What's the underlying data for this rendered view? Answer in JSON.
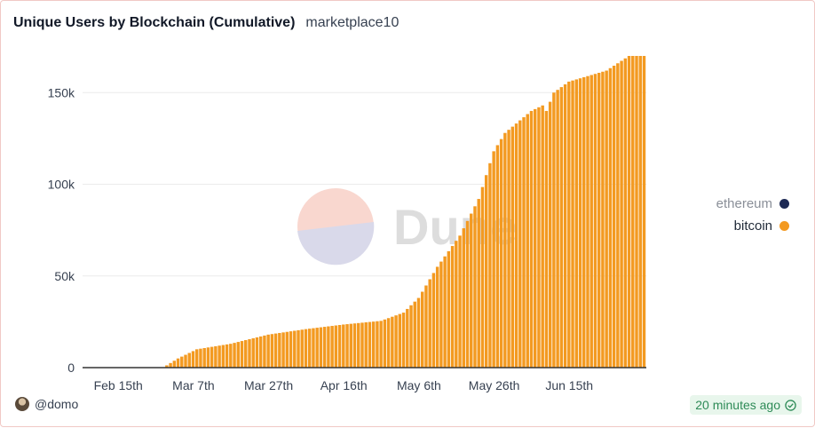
{
  "header": {
    "title": "Unique Users by Blockchain (Cumulative)",
    "subtitle": "marketplace10"
  },
  "watermark": {
    "text": "Dune"
  },
  "legend": {
    "items": [
      {
        "label": "ethereum",
        "color": "#1e2a55"
      },
      {
        "label": "bitcoin",
        "color": "#f39a21"
      }
    ]
  },
  "footer": {
    "user": "@domo",
    "freshness": "20 minutes ago"
  },
  "colors": {
    "bar": "#f39a21",
    "grid": "#ececec",
    "axis": "#333333"
  },
  "chart_data": {
    "type": "bar",
    "title": "Unique Users by Blockchain (Cumulative)",
    "subtitle": "marketplace10",
    "x_ticks": [
      "Feb 15th",
      "Mar 7th",
      "Mar 27th",
      "Apr 16th",
      "May 6th",
      "May 26th",
      "Jun 15th"
    ],
    "y_ticks": [
      0,
      50000,
      100000,
      150000
    ],
    "y_tick_labels": [
      "0",
      "50k",
      "100k",
      "150k"
    ],
    "ylim": [
      0,
      170000
    ],
    "x_range": [
      "2023-02-06",
      "2023-07-05"
    ],
    "legend_position": "right",
    "grid": true,
    "series": [
      {
        "name": "bitcoin",
        "color": "#f39a21",
        "anchors": [
          [
            "2023-02-06",
            0
          ],
          [
            "2023-02-27",
            0
          ],
          [
            "2023-03-03",
            5000
          ],
          [
            "2023-03-08",
            10000
          ],
          [
            "2023-03-17",
            13000
          ],
          [
            "2023-03-27",
            18000
          ],
          [
            "2023-04-06",
            21000
          ],
          [
            "2023-04-16",
            23500
          ],
          [
            "2023-04-26",
            25500
          ],
          [
            "2023-05-02",
            30000
          ],
          [
            "2023-05-06",
            38000
          ],
          [
            "2023-05-11",
            55000
          ],
          [
            "2023-05-17",
            72000
          ],
          [
            "2023-05-22",
            92000
          ],
          [
            "2023-05-26",
            118000
          ],
          [
            "2023-05-29",
            128000
          ],
          [
            "2023-06-05",
            140000
          ],
          [
            "2023-06-08",
            143000
          ],
          [
            "2023-06-09",
            140000
          ],
          [
            "2023-06-11",
            150000
          ],
          [
            "2023-06-15",
            156000
          ],
          [
            "2023-06-25",
            162000
          ],
          [
            "2023-07-01",
            170000
          ],
          [
            "2023-07-05",
            170000
          ]
        ]
      },
      {
        "name": "ethereum",
        "color": "#1e2a55",
        "anchors": [
          [
            "2023-02-06",
            0
          ],
          [
            "2023-07-05",
            0
          ]
        ]
      }
    ]
  }
}
